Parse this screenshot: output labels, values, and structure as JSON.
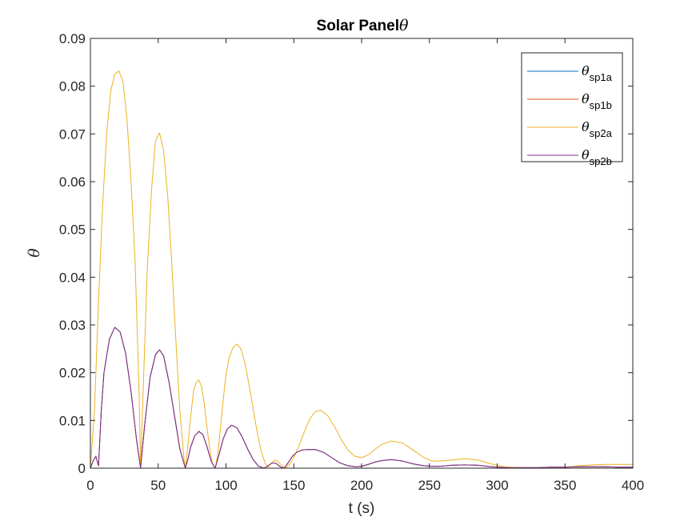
{
  "chart_data": {
    "type": "line",
    "title": "Solar Panel",
    "title_symbol": "θ",
    "xlabel": "t (s)",
    "ylabel": "θ",
    "xlim": [
      0,
      400
    ],
    "ylim": [
      0,
      0.09
    ],
    "xticks": [
      0,
      50,
      100,
      150,
      200,
      250,
      300,
      350,
      400
    ],
    "yticks": [
      0,
      0.01,
      0.02,
      0.03,
      0.04,
      0.05,
      0.06,
      0.07,
      0.08,
      0.09
    ],
    "xtick_labels": [
      "0",
      "50",
      "100",
      "150",
      "200",
      "250",
      "300",
      "350",
      "400"
    ],
    "ytick_labels": [
      "0",
      "0.01",
      "0.02",
      "0.03",
      "0.04",
      "0.05",
      "0.06",
      "0.07",
      "0.08",
      "0.09"
    ],
    "grid": false,
    "legend_position": "top-right",
    "series": [
      {
        "name": "θsp1a",
        "symbol": "θ",
        "subscript": "sp1a",
        "color": "#0072BD",
        "x": [
          0,
          2,
          4,
          6,
          8,
          10,
          14,
          18,
          22,
          26,
          30,
          34,
          37,
          40,
          44,
          48,
          51,
          54,
          58,
          62,
          66,
          70,
          72,
          74,
          77,
          80,
          83,
          86,
          89,
          92,
          95,
          98,
          101,
          104,
          108,
          112,
          116,
          120,
          124,
          128,
          131,
          134,
          137,
          140,
          143,
          146,
          149,
          152,
          156,
          160,
          166,
          172,
          178,
          184,
          190,
          196,
          200,
          205,
          210,
          215,
          222,
          230,
          238,
          246,
          252,
          258,
          266,
          276,
          286,
          296,
          300,
          310,
          320,
          330,
          340,
          350,
          360,
          370,
          380,
          390,
          400
        ],
        "y": [
          0,
          0.0015,
          0.0025,
          0.0005,
          0.012,
          0.02,
          0.027,
          0.0295,
          0.0285,
          0.024,
          0.016,
          0.006,
          0,
          0.009,
          0.019,
          0.0238,
          0.0248,
          0.0235,
          0.018,
          0.011,
          0.004,
          0,
          0.002,
          0.0045,
          0.0068,
          0.0077,
          0.007,
          0.0045,
          0.0015,
          0,
          0.003,
          0.0062,
          0.0082,
          0.009,
          0.0085,
          0.0065,
          0.004,
          0.0018,
          0.0004,
          0,
          0.0005,
          0.0011,
          0.001,
          0.0003,
          0,
          0.0012,
          0.0025,
          0.0033,
          0.0038,
          0.0039,
          0.0039,
          0.0033,
          0.0022,
          0.0011,
          0.0005,
          0.0003,
          0.0004,
          0.0008,
          0.0013,
          0.0016,
          0.0018,
          0.0015,
          0.0009,
          0.0005,
          0.0004,
          0.0004,
          0.0006,
          0.0007,
          0.0006,
          0.0003,
          0.0002,
          0.0001,
          0.0001,
          0.0001,
          0.0002,
          0.0002,
          0.0003,
          0.0003,
          0.0003,
          0.0002,
          0.0002
        ]
      },
      {
        "name": "θsp1b",
        "symbol": "θ",
        "subscript": "sp1b",
        "color": "#D95319",
        "x": [
          0,
          2,
          4,
          6,
          8,
          10,
          14,
          18,
          22,
          26,
          30,
          34,
          37,
          40,
          44,
          48,
          51,
          54,
          58,
          62,
          66,
          70,
          72,
          74,
          77,
          80,
          83,
          86,
          89,
          92,
          95,
          98,
          101,
          104,
          108,
          112,
          116,
          120,
          124,
          128,
          131,
          134,
          137,
          140,
          143,
          146,
          149,
          152,
          156,
          160,
          166,
          172,
          178,
          184,
          190,
          196,
          200,
          205,
          210,
          215,
          222,
          230,
          238,
          246,
          252,
          258,
          266,
          276,
          286,
          296,
          300,
          310,
          320,
          330,
          340,
          350,
          360,
          370,
          380,
          390,
          400
        ],
        "y": [
          0,
          0.0015,
          0.0025,
          0.0005,
          0.012,
          0.02,
          0.027,
          0.0295,
          0.0285,
          0.024,
          0.016,
          0.006,
          0,
          0.009,
          0.019,
          0.0238,
          0.0248,
          0.0235,
          0.018,
          0.011,
          0.004,
          0,
          0.002,
          0.0045,
          0.0068,
          0.0077,
          0.007,
          0.0045,
          0.0015,
          0,
          0.003,
          0.0062,
          0.0082,
          0.009,
          0.0085,
          0.0065,
          0.004,
          0.0018,
          0.0004,
          0,
          0.0005,
          0.0011,
          0.001,
          0.0003,
          0,
          0.0012,
          0.0025,
          0.0033,
          0.0038,
          0.0039,
          0.0039,
          0.0033,
          0.0022,
          0.0011,
          0.0005,
          0.0003,
          0.0004,
          0.0008,
          0.0013,
          0.0016,
          0.0018,
          0.0015,
          0.0009,
          0.0005,
          0.0004,
          0.0004,
          0.0006,
          0.0007,
          0.0006,
          0.0003,
          0.0002,
          0.0001,
          0.0001,
          0.0001,
          0.0002,
          0.0002,
          0.0003,
          0.0003,
          0.0003,
          0.0002,
          0.0002
        ]
      },
      {
        "name": "θsp2a",
        "symbol": "θ",
        "subscript": "sp2a",
        "color": "#EDB120",
        "x": [
          0,
          3,
          6,
          9,
          12,
          15,
          18,
          21,
          24,
          27,
          30,
          33,
          36,
          37,
          39,
          42,
          45,
          48,
          51,
          54,
          57,
          60,
          63,
          66,
          69,
          70,
          72,
          74,
          76,
          78,
          80,
          82,
          84,
          86,
          88,
          90,
          92,
          94,
          96,
          98,
          100,
          102,
          105,
          108,
          111,
          114,
          117,
          120,
          123,
          126,
          129,
          131,
          133,
          136,
          138,
          141,
          144,
          147,
          150,
          154,
          158,
          162,
          166,
          170,
          175,
          180,
          185,
          190,
          195,
          200,
          205,
          210,
          215,
          222,
          230,
          238,
          246,
          252,
          258,
          266,
          276,
          286,
          294,
          300,
          305,
          310,
          320,
          330,
          340,
          350,
          360,
          370,
          380,
          390,
          400
        ],
        "y": [
          0,
          0.012,
          0.035,
          0.055,
          0.07,
          0.079,
          0.0825,
          0.0832,
          0.081,
          0.073,
          0.06,
          0.043,
          0.015,
          0,
          0.017,
          0.042,
          0.058,
          0.0685,
          0.0702,
          0.0665,
          0.057,
          0.043,
          0.027,
          0.012,
          0.002,
          0,
          0.005,
          0.011,
          0.016,
          0.018,
          0.0185,
          0.017,
          0.0135,
          0.0085,
          0.004,
          0.001,
          0,
          0.003,
          0.0085,
          0.0145,
          0.0195,
          0.0228,
          0.0252,
          0.026,
          0.025,
          0.022,
          0.0175,
          0.0125,
          0.0075,
          0.0035,
          0.001,
          0.0002,
          0.0009,
          0.0017,
          0.0015,
          0.0006,
          0,
          0.0008,
          0.0022,
          0.0048,
          0.0078,
          0.0104,
          0.0119,
          0.0121,
          0.011,
          0.0087,
          0.006,
          0.0038,
          0.0025,
          0.0022,
          0.0028,
          0.004,
          0.005,
          0.0057,
          0.0053,
          0.0038,
          0.0022,
          0.0015,
          0.0015,
          0.0017,
          0.002,
          0.0017,
          0.001,
          0.0006,
          0.0003,
          0.0002,
          0.0001,
          0.0001,
          0.0001,
          0.0002,
          0.0005,
          0.0007,
          0.0008,
          0.0008,
          0.0008
        ]
      },
      {
        "name": "θsp2b",
        "symbol": "θ",
        "subscript": "sp2b",
        "color": "#7E2F8E",
        "x": [
          0,
          2,
          4,
          6,
          8,
          10,
          14,
          18,
          22,
          26,
          30,
          34,
          37,
          40,
          44,
          48,
          51,
          54,
          58,
          62,
          66,
          70,
          72,
          74,
          77,
          80,
          83,
          86,
          89,
          92,
          95,
          98,
          101,
          104,
          108,
          112,
          116,
          120,
          124,
          128,
          131,
          134,
          137,
          140,
          143,
          146,
          149,
          152,
          156,
          160,
          166,
          172,
          178,
          184,
          190,
          196,
          200,
          205,
          210,
          215,
          222,
          230,
          238,
          246,
          252,
          258,
          266,
          276,
          286,
          296,
          300,
          310,
          320,
          330,
          340,
          350,
          360,
          370,
          380,
          390,
          400
        ],
        "y": [
          0,
          0.0015,
          0.0025,
          0.0005,
          0.012,
          0.02,
          0.027,
          0.0295,
          0.0285,
          0.024,
          0.016,
          0.006,
          0,
          0.009,
          0.019,
          0.0238,
          0.0248,
          0.0235,
          0.018,
          0.011,
          0.004,
          0,
          0.002,
          0.0045,
          0.0068,
          0.0077,
          0.007,
          0.0045,
          0.0015,
          0,
          0.003,
          0.0062,
          0.0082,
          0.009,
          0.0085,
          0.0065,
          0.004,
          0.0018,
          0.0004,
          0,
          0.0005,
          0.0011,
          0.001,
          0.0003,
          0,
          0.0012,
          0.0025,
          0.0033,
          0.0038,
          0.0039,
          0.0039,
          0.0033,
          0.0022,
          0.0011,
          0.0005,
          0.0003,
          0.0004,
          0.0008,
          0.0013,
          0.0016,
          0.0018,
          0.0015,
          0.0009,
          0.0005,
          0.0004,
          0.0004,
          0.0006,
          0.0007,
          0.0006,
          0.0003,
          0.0002,
          0.0001,
          0.0001,
          0.0001,
          0.0002,
          0.0002,
          0.0003,
          0.0003,
          0.0003,
          0.0002,
          0.0002
        ]
      }
    ]
  }
}
